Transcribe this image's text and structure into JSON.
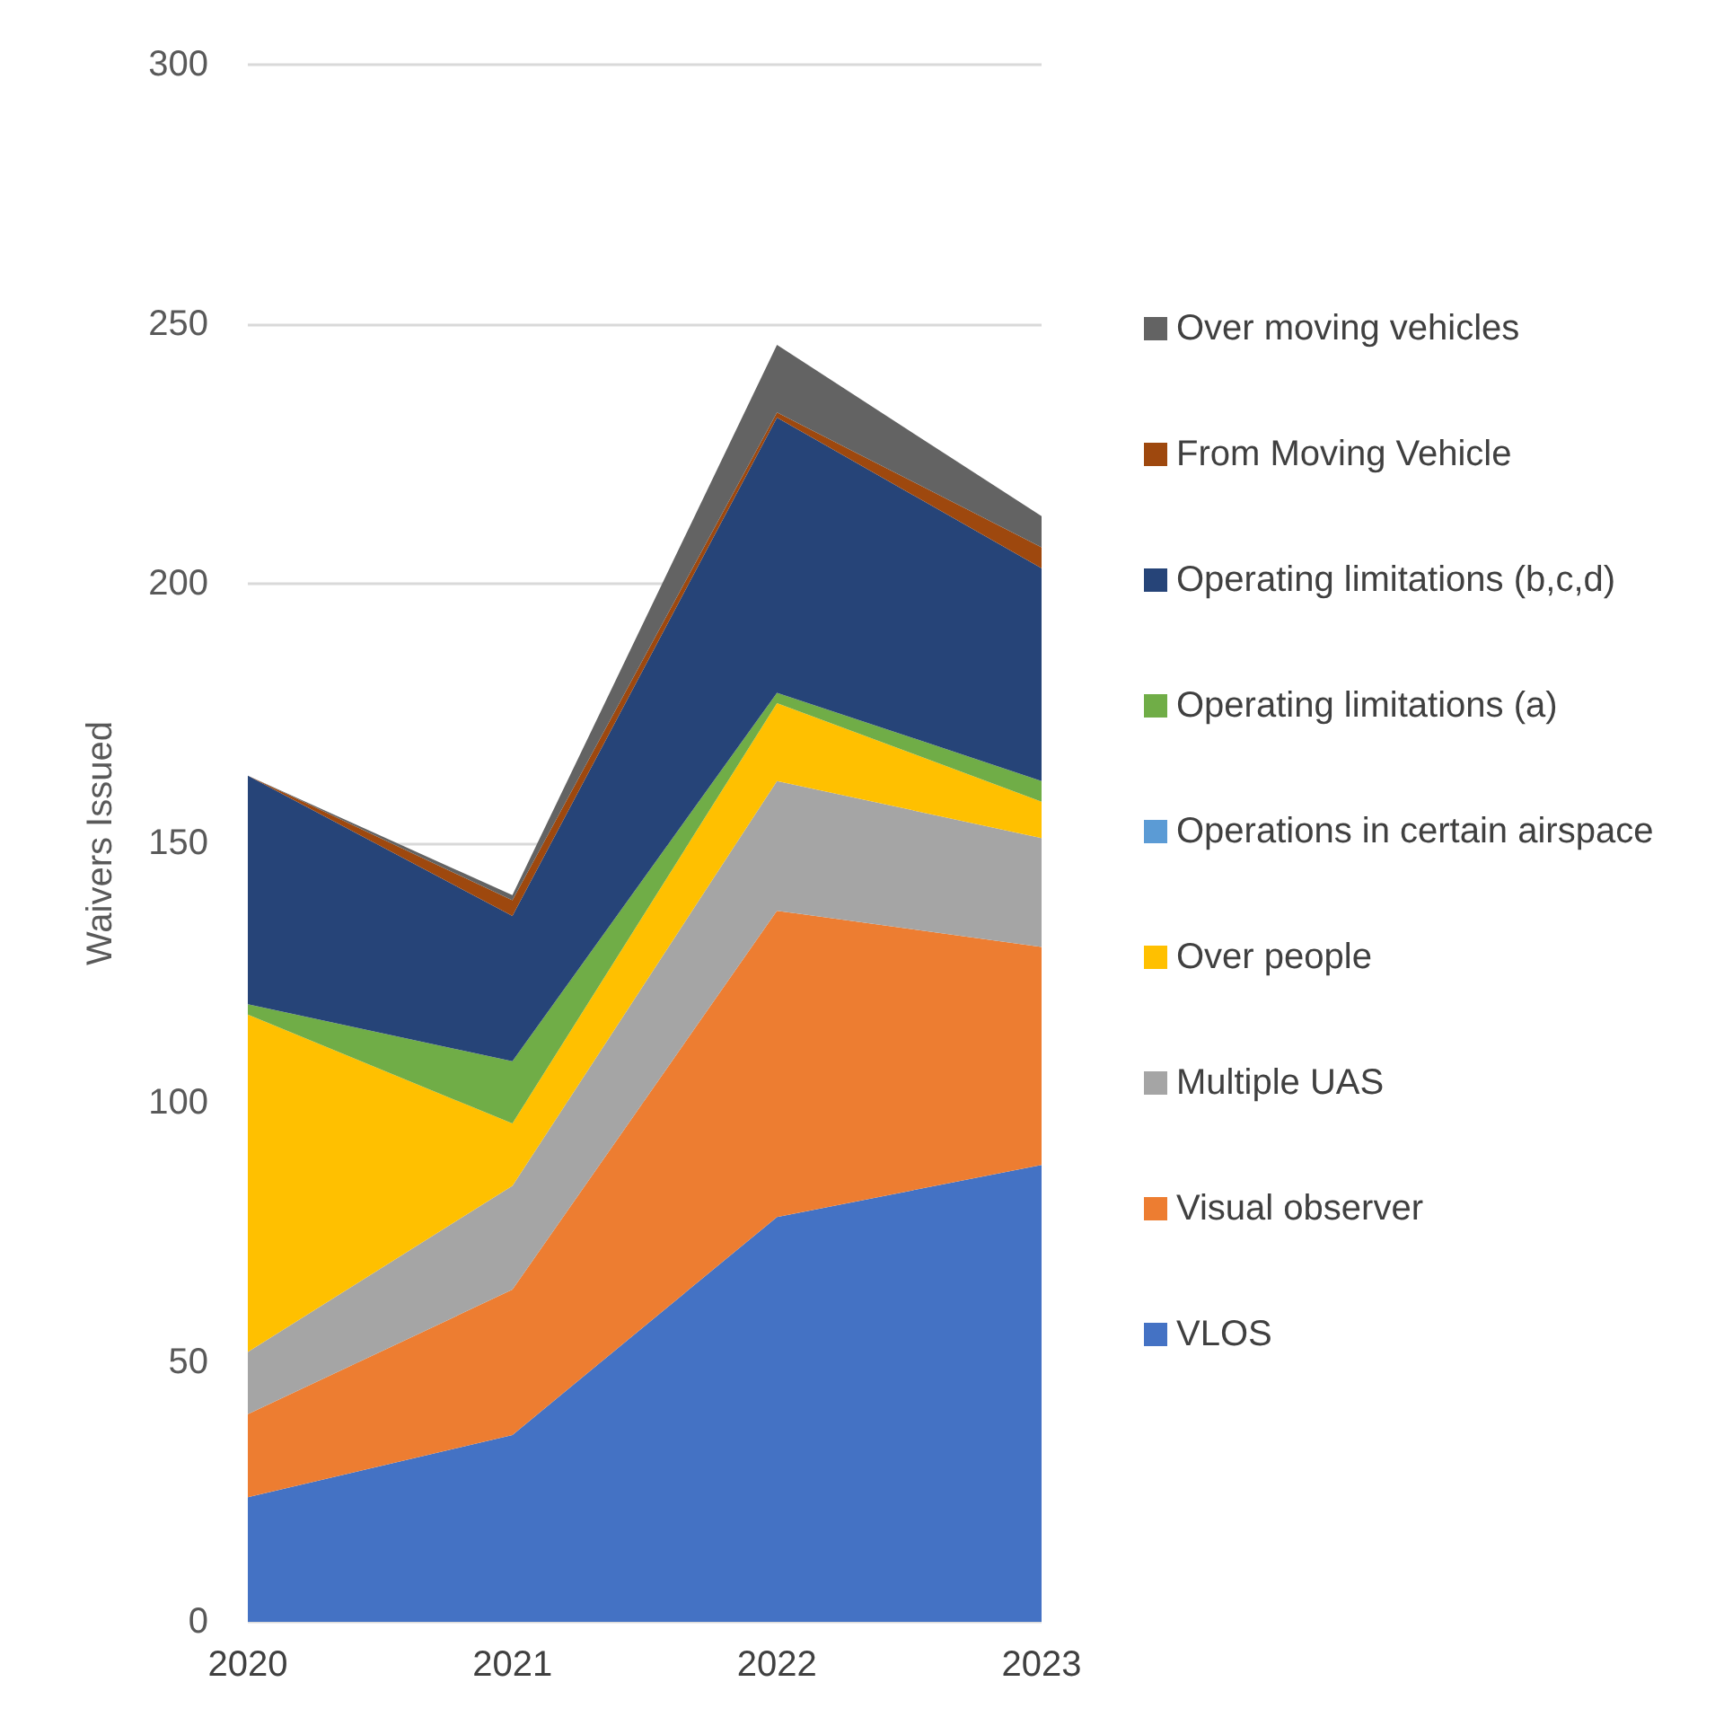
{
  "chart_data": {
    "type": "area",
    "stacked": true,
    "ylabel": "Waivers Issued",
    "categories": [
      "2020",
      "2021",
      "2022",
      "2023"
    ],
    "ylim": [
      0,
      300
    ],
    "yticks": [
      0,
      50,
      100,
      150,
      200,
      250,
      300
    ],
    "grid": "y",
    "legend": "right",
    "series": [
      {
        "name": "VLOS",
        "color": "#4472c4",
        "values": [
          24,
          36,
          78,
          88
        ]
      },
      {
        "name": "Visual observer",
        "color": "#ed7d31",
        "values": [
          16,
          28,
          59,
          42
        ]
      },
      {
        "name": "Multiple UAS",
        "color": "#a5a5a5",
        "values": [
          12,
          20,
          25,
          21
        ]
      },
      {
        "name": "Over people",
        "color": "#ffc000",
        "values": [
          65,
          12,
          15,
          7
        ]
      },
      {
        "name": "Operations in certain airspace",
        "color": "#5b9bd5",
        "values": [
          null,
          null,
          null,
          null
        ]
      },
      {
        "name": "Operating limitations (a)",
        "color": "#70ad47",
        "values": [
          2,
          12,
          2,
          4
        ]
      },
      {
        "name": "Operating limitations (b,c,d)",
        "color": "#264478",
        "values": [
          44,
          28,
          53,
          41
        ]
      },
      {
        "name": "From Moving Vehicle",
        "color": "#9e480e",
        "values": [
          0,
          3,
          1,
          4
        ]
      },
      {
        "name": "Over moving vehicles",
        "color": "#636363",
        "values": [
          0,
          1,
          13,
          6
        ]
      }
    ]
  }
}
